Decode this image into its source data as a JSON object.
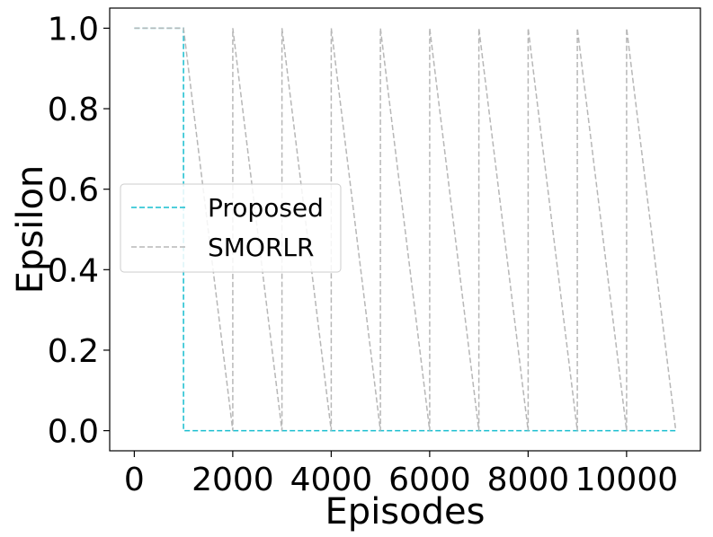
{
  "chart_data": {
    "type": "line",
    "title": "",
    "xlabel": "Episodes",
    "ylabel": "Epsilon",
    "xlim": [
      -500,
      11500
    ],
    "ylim": [
      -0.05,
      1.05
    ],
    "xticks": [
      0,
      2000,
      4000,
      6000,
      8000,
      10000
    ],
    "xtick_labels": [
      "0",
      "2000",
      "4000",
      "6000",
      "8000",
      "10000"
    ],
    "yticks": [
      0.0,
      0.2,
      0.4,
      0.6,
      0.8,
      1.0
    ],
    "ytick_labels": [
      "0.0",
      "0.2",
      "0.4",
      "0.6",
      "0.8",
      "1.0"
    ],
    "grid": false,
    "legend_position": "center-left",
    "series": [
      {
        "name": "Proposed",
        "color": "#17becf",
        "dash": "dashed",
        "x": [
          0,
          1000,
          1000,
          11000
        ],
        "y": [
          1.0,
          1.0,
          0.0,
          0.0
        ]
      },
      {
        "name": "SMORLR",
        "color": "#b7b7b7",
        "dash": "dashed",
        "x": [
          0,
          1000,
          2000,
          2000,
          3000,
          3000,
          4000,
          4000,
          5000,
          5000,
          6000,
          6000,
          7000,
          7000,
          8000,
          8000,
          9000,
          9000,
          10000,
          10000,
          11000
        ],
        "y": [
          1.0,
          1.0,
          0.0,
          1.0,
          0.0,
          1.0,
          0.0,
          1.0,
          0.0,
          1.0,
          0.0,
          1.0,
          0.0,
          1.0,
          0.0,
          1.0,
          0.0,
          1.0,
          0.0,
          1.0,
          0.0
        ]
      }
    ]
  }
}
